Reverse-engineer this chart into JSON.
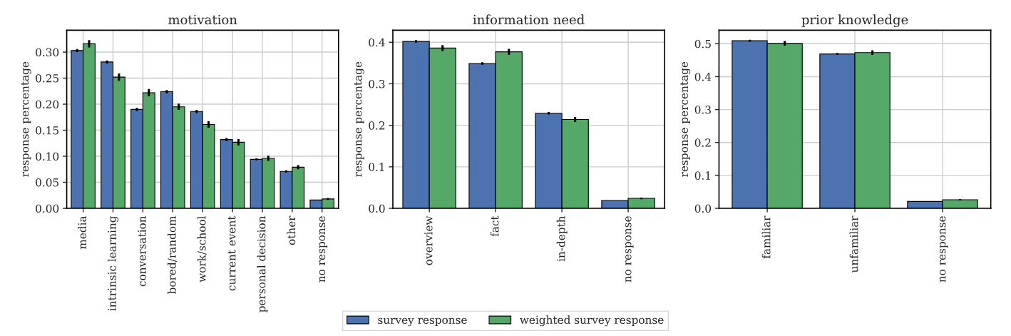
{
  "chart_data": [
    {
      "type": "bar",
      "title": "motivation",
      "ylabel": "response percentage",
      "categories": [
        "media",
        "intrinsic learning",
        "conversation",
        "bored/random",
        "work/school",
        "current event",
        "personal decision",
        "other",
        "no response"
      ],
      "series": [
        {
          "name": "survey response",
          "color": "#4c72b0",
          "values": [
            0.303,
            0.281,
            0.19,
            0.224,
            0.186,
            0.132,
            0.094,
            0.071,
            0.016
          ],
          "errors": [
            0.003,
            0.003,
            0.003,
            0.003,
            0.003,
            0.003,
            0.002,
            0.002,
            null
          ]
        },
        {
          "name": "weighted survey response",
          "color": "#55a868",
          "values": [
            0.316,
            0.252,
            0.222,
            0.195,
            0.161,
            0.127,
            0.096,
            0.079,
            0.018
          ],
          "errors": [
            0.007,
            0.007,
            0.007,
            0.006,
            0.006,
            0.006,
            0.005,
            0.004,
            0.002
          ]
        }
      ],
      "ylim": [
        0,
        0.342
      ],
      "yticks": [
        {
          "value": 0,
          "label": "0.00"
        },
        {
          "value": 0.05,
          "label": "0.05"
        },
        {
          "value": 0.1,
          "label": "0.10"
        },
        {
          "value": 0.15,
          "label": "0.15"
        },
        {
          "value": 0.2,
          "label": "0.20"
        },
        {
          "value": 0.25,
          "label": "0.25"
        },
        {
          "value": 0.3,
          "label": "0.30"
        }
      ],
      "grid": true,
      "legend": "bottom"
    },
    {
      "type": "bar",
      "title": "information need",
      "ylabel": "response percentage",
      "categories": [
        "overview",
        "fact",
        "in-depth",
        "no response"
      ],
      "series": [
        {
          "name": "survey response",
          "color": "#4c72b0",
          "values": [
            0.402,
            0.349,
            0.229,
            0.019
          ],
          "errors": [
            0.003,
            0.003,
            0.003,
            null
          ]
        },
        {
          "name": "weighted survey response",
          "color": "#55a868",
          "values": [
            0.386,
            0.377,
            0.214,
            0.024
          ],
          "errors": [
            0.007,
            0.007,
            0.006,
            0.002
          ]
        }
      ],
      "ylim": [
        0,
        0.429
      ],
      "yticks": [
        {
          "value": 0,
          "label": "0.0"
        },
        0.1,
        0.2,
        0.3,
        0.4
      ],
      "grid": true
    },
    {
      "type": "bar",
      "title": "prior knowledge",
      "ylabel": "response percentage",
      "categories": [
        "familiar",
        "unfamiliar",
        "no response"
      ],
      "series": [
        {
          "name": "survey response",
          "color": "#4c72b0",
          "values": [
            0.509,
            0.469,
            0.021
          ],
          "errors": [
            0.003,
            0.003,
            null
          ]
        },
        {
          "name": "weighted survey response",
          "color": "#55a868",
          "values": [
            0.501,
            0.473,
            0.026
          ],
          "errors": [
            0.007,
            0.007,
            0.002
          ]
        }
      ],
      "ylim": [
        0,
        0.541
      ],
      "yticks": [
        {
          "value": 0,
          "label": "0.0"
        },
        0.1,
        0.2,
        0.3,
        0.4,
        0.5
      ],
      "grid": true
    }
  ]
}
